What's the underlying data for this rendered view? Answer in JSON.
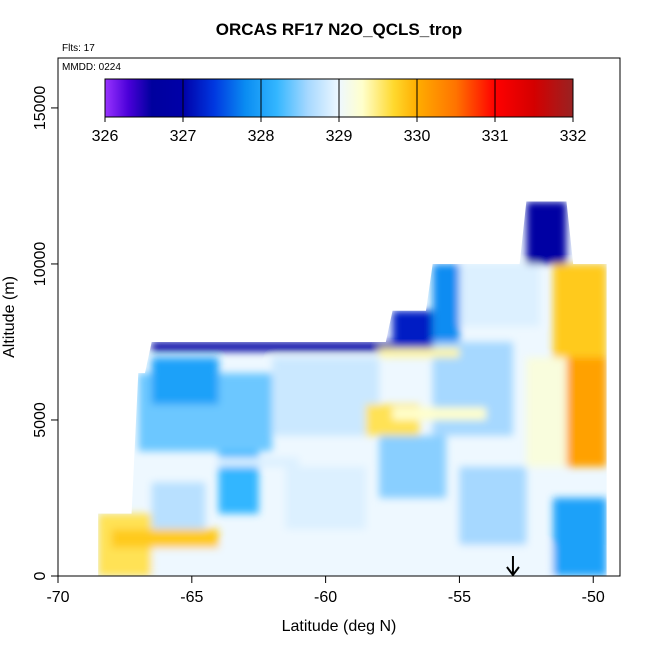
{
  "chart_data": {
    "type": "heatmap",
    "title": "ORCAS RF17 N2O_QCLS_trop",
    "annotations": {
      "flights": "Flts: 17",
      "date": "MMDD: 0224"
    },
    "xlabel": "Latitude (deg N)",
    "ylabel": "Altitude (m)",
    "xlim": [
      -70,
      -49
    ],
    "ylim": [
      0,
      16600
    ],
    "x_ticks": [
      -70,
      -65,
      -60,
      -55,
      -50
    ],
    "x_tick_labels": [
      "-70",
      "-65",
      "-60",
      "-55",
      "-50"
    ],
    "y_ticks": [
      0,
      5000,
      10000,
      15000
    ],
    "y_tick_labels": [
      "0",
      "5000",
      "10000",
      "15000"
    ],
    "marker": {
      "latitude": -53,
      "type": "down-arrow"
    },
    "colorbar": {
      "range": [
        326,
        332
      ],
      "ticks": [
        326,
        327,
        328,
        329,
        330,
        331,
        332
      ],
      "tick_labels": [
        "326",
        "327",
        "328",
        "329",
        "330",
        "331",
        "332"
      ],
      "stops": [
        {
          "value": 326.0,
          "color": "#9933ff"
        },
        {
          "value": 326.3,
          "color": "#4a00d9"
        },
        {
          "value": 326.6,
          "color": "#00009e"
        },
        {
          "value": 327.0,
          "color": "#0000a8"
        },
        {
          "value": 327.4,
          "color": "#0038e0"
        },
        {
          "value": 327.8,
          "color": "#0a8cf2"
        },
        {
          "value": 328.2,
          "color": "#33b6ff"
        },
        {
          "value": 328.6,
          "color": "#a6d8ff"
        },
        {
          "value": 329.0,
          "color": "#eef8ff"
        },
        {
          "value": 329.3,
          "color": "#ffffcc"
        },
        {
          "value": 329.7,
          "color": "#ffd92e"
        },
        {
          "value": 330.0,
          "color": "#ffad00"
        },
        {
          "value": 330.5,
          "color": "#ff7300"
        },
        {
          "value": 331.0,
          "color": "#ff0000"
        },
        {
          "value": 331.5,
          "color": "#d40000"
        },
        {
          "value": 332.0,
          "color": "#992222"
        }
      ]
    },
    "regions": [
      {
        "lat_range": [
          -68.5,
          -49.5
        ],
        "alt_range": [
          0,
          1000
        ],
        "value": 329.0
      },
      {
        "lat_range": [
          -68.5,
          -66.5
        ],
        "alt_range": [
          0,
          2000
        ],
        "value": 329.6
      },
      {
        "lat_range": [
          -66.5,
          -64.5
        ],
        "alt_range": [
          1000,
          3000
        ],
        "value": 328.7
      },
      {
        "lat_range": [
          -64.0,
          -62.5
        ],
        "alt_range": [
          2000,
          4000
        ],
        "value": 328.2
      },
      {
        "lat_range": [
          -61.5,
          -58.5
        ],
        "alt_range": [
          1500,
          3500
        ],
        "value": 328.9
      },
      {
        "lat_range": [
          -58.0,
          -55.5
        ],
        "alt_range": [
          2500,
          4500
        ],
        "value": 328.5
      },
      {
        "lat_range": [
          -55.0,
          -52.5
        ],
        "alt_range": [
          1000,
          3500
        ],
        "value": 328.6
      },
      {
        "lat_range": [
          -51.5,
          -49.5
        ],
        "alt_range": [
          0,
          2500
        ],
        "value": 328.0
      },
      {
        "lat_range": [
          -67.0,
          -62.0
        ],
        "alt_range": [
          4000,
          6500
        ],
        "value": 328.4
      },
      {
        "lat_range": [
          -66.5,
          -64.0
        ],
        "alt_range": [
          5500,
          7000
        ],
        "value": 328.0
      },
      {
        "lat_range": [
          -62.0,
          -58.0
        ],
        "alt_range": [
          4500,
          7000
        ],
        "value": 328.8
      },
      {
        "lat_range": [
          -58.5,
          -56.5
        ],
        "alt_range": [
          4500,
          5500
        ],
        "value": 329.6
      },
      {
        "lat_range": [
          -56.0,
          -53.0
        ],
        "alt_range": [
          4500,
          7500
        ],
        "value": 328.6
      },
      {
        "lat_range": [
          -52.5,
          -51.0
        ],
        "alt_range": [
          3500,
          7000
        ],
        "value": 329.2
      },
      {
        "lat_range": [
          -51.0,
          -49.5
        ],
        "alt_range": [
          3500,
          9000
        ],
        "value": 330.1
      },
      {
        "lat_range": [
          -51.5,
          -49.5
        ],
        "alt_range": [
          7000,
          10000
        ],
        "value": 329.8
      },
      {
        "lat_range": [
          -57.5,
          -56.0
        ],
        "alt_range": [
          7000,
          8500
        ],
        "value": 327.2
      },
      {
        "lat_range": [
          -56.0,
          -55.0
        ],
        "alt_range": [
          7500,
          10000
        ],
        "value": 327.8
      },
      {
        "lat_range": [
          -55.0,
          -52.0
        ],
        "alt_range": [
          8000,
          10000
        ],
        "value": 328.9
      },
      {
        "lat_range": [
          -52.5,
          -51.0
        ],
        "alt_range": [
          10000,
          12000
        ],
        "value": 326.8
      },
      {
        "lat_range": [
          -66.5,
          -57.5
        ],
        "alt_range": [
          7200,
          7500
        ],
        "value": 326.8
      },
      {
        "lat_range": [
          -58.0,
          -55.0
        ],
        "alt_range": [
          7000,
          7300
        ],
        "value": 329.4
      },
      {
        "lat_range": [
          -68.0,
          -64.0
        ],
        "alt_range": [
          900,
          1500
        ],
        "value": 329.8
      },
      {
        "lat_range": [
          -57.5,
          -54.0
        ],
        "alt_range": [
          5000,
          5400
        ],
        "value": 329.3
      },
      {
        "lat_range": [
          -64.0,
          -61.0
        ],
        "alt_range": [
          3500,
          3800
        ],
        "value": 328.9
      }
    ]
  }
}
